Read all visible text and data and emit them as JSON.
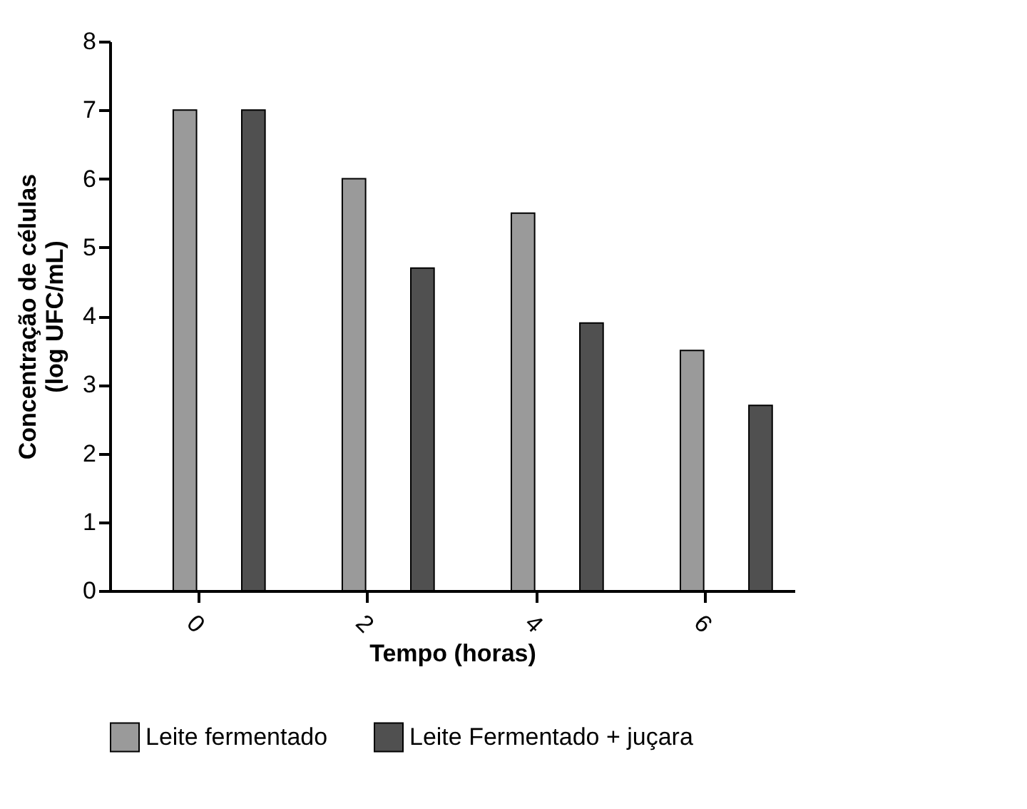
{
  "chart_data": {
    "type": "bar",
    "xlabel": "Tempo (horas)",
    "ylabel": "Concentração de células (log UFC/mL)",
    "categories": [
      "0",
      "2",
      "4",
      "6"
    ],
    "series": [
      {
        "name": "Leite fermentado",
        "color": "#9a9a9a",
        "values": [
          7,
          6,
          5.5,
          3.5
        ]
      },
      {
        "name": "Leite Fermentado + juçara",
        "color": "#505050",
        "values": [
          7,
          4.7,
          3.9,
          2.7
        ]
      }
    ],
    "ylim": [
      0,
      8
    ],
    "yticks": [
      0,
      1,
      2,
      3,
      4,
      5,
      6,
      7,
      8
    ],
    "grid": false,
    "legend": "bottom"
  }
}
